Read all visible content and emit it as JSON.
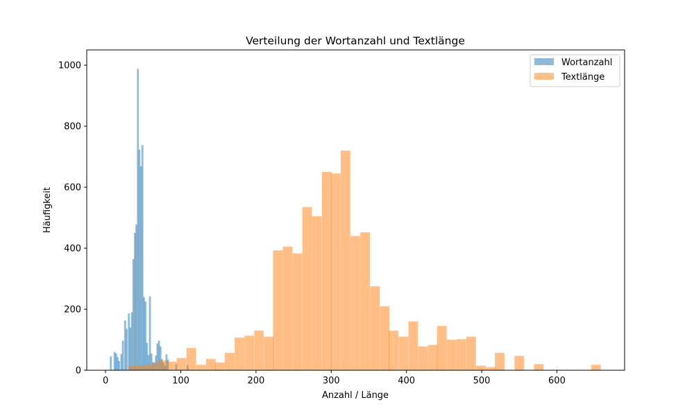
{
  "chart_data": {
    "type": "histogram",
    "title": "Verteilung der Wortanzahl und Textlänge",
    "xlabel": "Anzahl / Länge",
    "ylabel": "Häufigkeit",
    "xlim": [
      -25,
      690
    ],
    "ylim": [
      0,
      1050
    ],
    "x_ticks": [
      0,
      100,
      200,
      300,
      400,
      500,
      600
    ],
    "y_ticks": [
      0,
      200,
      400,
      600,
      800,
      1000
    ],
    "legend_position": "top-right",
    "grid": false,
    "series": [
      {
        "name": "Wortanzahl",
        "color": "#1f77b4",
        "opacity": 0.5,
        "bin_width": 2.6,
        "bins": [
          [
            7,
            45
          ],
          [
            12,
            60
          ],
          [
            14,
            55
          ],
          [
            16,
            43
          ],
          [
            18,
            30
          ],
          [
            21,
            53
          ],
          [
            23,
            97
          ],
          [
            26,
            163
          ],
          [
            28,
            136
          ],
          [
            31,
            186
          ],
          [
            33,
            140
          ],
          [
            35,
            190
          ],
          [
            37,
            365
          ],
          [
            39,
            450
          ],
          [
            41,
            478
          ],
          [
            43,
            988
          ],
          [
            45,
            723
          ],
          [
            47,
            668
          ],
          [
            49,
            738
          ],
          [
            51,
            240
          ],
          [
            53,
            225
          ],
          [
            55,
            90
          ],
          [
            57,
            50
          ],
          [
            59,
            242
          ],
          [
            61,
            55
          ],
          [
            63,
            27
          ],
          [
            65,
            25
          ],
          [
            67,
            48
          ],
          [
            69,
            88
          ],
          [
            71,
            97
          ],
          [
            73,
            78
          ],
          [
            75,
            37
          ],
          [
            77,
            25
          ],
          [
            79,
            15
          ],
          [
            81,
            52
          ],
          [
            83,
            35
          ],
          [
            94,
            20
          ],
          [
            109,
            18
          ]
        ]
      },
      {
        "name": "Textlänge",
        "color": "#ff7f0e",
        "opacity": 0.5,
        "bin_width": 12.8,
        "bins": [
          [
            37,
            15
          ],
          [
            50,
            15
          ],
          [
            62,
            20
          ],
          [
            75,
            32
          ],
          [
            88,
            28
          ],
          [
            101,
            40
          ],
          [
            114,
            73
          ],
          [
            127,
            18
          ],
          [
            140,
            37
          ],
          [
            152,
            25
          ],
          [
            165,
            57
          ],
          [
            178,
            107
          ],
          [
            191,
            113
          ],
          [
            204,
            130
          ],
          [
            217,
            110
          ],
          [
            229,
            393
          ],
          [
            242,
            405
          ],
          [
            255,
            383
          ],
          [
            268,
            535
          ],
          [
            281,
            505
          ],
          [
            294,
            650
          ],
          [
            306,
            645
          ],
          [
            319,
            720
          ],
          [
            332,
            440
          ],
          [
            345,
            452
          ],
          [
            358,
            275
          ],
          [
            371,
            210
          ],
          [
            383,
            130
          ],
          [
            396,
            110
          ],
          [
            409,
            160
          ],
          [
            422,
            78
          ],
          [
            435,
            83
          ],
          [
            447,
            145
          ],
          [
            460,
            100
          ],
          [
            473,
            102
          ],
          [
            486,
            110
          ],
          [
            499,
            15
          ],
          [
            512,
            10
          ],
          [
            524,
            57
          ],
          [
            550,
            47
          ],
          [
            576,
            20
          ],
          [
            652,
            18
          ]
        ]
      }
    ]
  }
}
